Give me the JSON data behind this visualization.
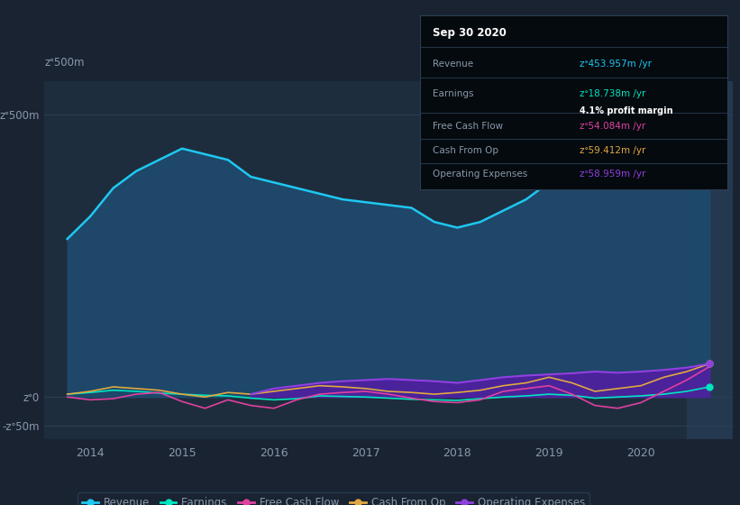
{
  "bg_color": "#1a2332",
  "plot_bg_color": "#1e2d3d",
  "grid_color": "#2a3f55",
  "text_color": "#8899aa",
  "title_color": "#ffffff",
  "ylim": [
    -75,
    560
  ],
  "xlim_start": 2013.5,
  "xlim_end": 2021.0,
  "yticks": [
    -50,
    0,
    500
  ],
  "ytick_labels": [
    "-zᐤ50m",
    "zᐤ0",
    "zᐤ500m"
  ],
  "xtick_labels": [
    "2014",
    "2015",
    "2016",
    "2017",
    "2018",
    "2019",
    "2020"
  ],
  "xtick_vals": [
    2014,
    2015,
    2016,
    2017,
    2018,
    2019,
    2020
  ],
  "revenue_color": "#1ec8f0",
  "earnings_color": "#00e5c0",
  "fcf_color": "#e040a0",
  "cashfromop_color": "#e0a840",
  "opex_color": "#9040e0",
  "revenue_fill_color": "#1e4a6e",
  "opex_fill_color": "#5020a0",
  "legend_bg": "#1a2332",
  "legend_border": "#2a3f55",
  "tooltip_bg": "#050a0f",
  "tooltip_border": "#2a3f55",
  "tooltip_title": "Sep 30 2020",
  "tooltip_revenue": "zᐤ453.957m /yr",
  "tooltip_earnings": "zᐤ18.738m /yr",
  "tooltip_margin": "4.1% profit margin",
  "tooltip_fcf": "zᐤ54.084m /yr",
  "tooltip_cashfromop": "zᐤ59.412m /yr",
  "tooltip_opex": "zᐤ58.959m /yr",
  "highlight_color": "#253a52",
  "revenue_x": [
    2013.75,
    2014.0,
    2014.25,
    2014.5,
    2014.75,
    2015.0,
    2015.25,
    2015.5,
    2015.75,
    2016.0,
    2016.25,
    2016.5,
    2016.75,
    2017.0,
    2017.25,
    2017.5,
    2017.75,
    2018.0,
    2018.25,
    2018.5,
    2018.75,
    2019.0,
    2019.25,
    2019.5,
    2019.75,
    2020.0,
    2020.25,
    2020.5,
    2020.75
  ],
  "revenue_y": [
    280,
    320,
    370,
    400,
    420,
    440,
    430,
    420,
    390,
    380,
    370,
    360,
    350,
    345,
    340,
    335,
    310,
    300,
    310,
    330,
    350,
    380,
    420,
    440,
    430,
    420,
    410,
    430,
    455
  ],
  "earnings_x": [
    2013.75,
    2014.0,
    2014.25,
    2014.5,
    2014.75,
    2015.0,
    2015.25,
    2015.5,
    2015.75,
    2016.0,
    2016.25,
    2016.5,
    2016.75,
    2017.0,
    2017.25,
    2017.5,
    2017.75,
    2018.0,
    2018.25,
    2018.5,
    2018.75,
    2019.0,
    2019.25,
    2019.5,
    2019.75,
    2020.0,
    2020.25,
    2020.5,
    2020.75
  ],
  "earnings_y": [
    5,
    8,
    12,
    10,
    7,
    5,
    3,
    2,
    -2,
    -5,
    -3,
    2,
    1,
    0,
    -2,
    -4,
    -5,
    -6,
    -3,
    0,
    2,
    5,
    3,
    -2,
    0,
    2,
    5,
    10,
    18
  ],
  "fcf_x": [
    2013.75,
    2014.0,
    2014.25,
    2014.5,
    2014.75,
    2015.0,
    2015.25,
    2015.5,
    2015.75,
    2016.0,
    2016.25,
    2016.5,
    2016.75,
    2017.0,
    2017.25,
    2017.5,
    2017.75,
    2018.0,
    2018.25,
    2018.5,
    2018.75,
    2019.0,
    2019.25,
    2019.5,
    2019.75,
    2020.0,
    2020.25,
    2020.5,
    2020.75
  ],
  "fcf_y": [
    0,
    -5,
    -3,
    5,
    8,
    -8,
    -20,
    -5,
    -15,
    -20,
    -5,
    5,
    8,
    10,
    5,
    -2,
    -8,
    -10,
    -5,
    10,
    15,
    20,
    5,
    -15,
    -20,
    -10,
    10,
    30,
    54
  ],
  "cashfromop_x": [
    2013.75,
    2014.0,
    2014.25,
    2014.5,
    2014.75,
    2015.0,
    2015.25,
    2015.5,
    2015.75,
    2016.0,
    2016.25,
    2016.5,
    2016.75,
    2017.0,
    2017.25,
    2017.5,
    2017.75,
    2018.0,
    2018.25,
    2018.5,
    2018.75,
    2019.0,
    2019.25,
    2019.5,
    2019.75,
    2020.0,
    2020.25,
    2020.5,
    2020.75
  ],
  "cashfromop_y": [
    5,
    10,
    18,
    15,
    12,
    5,
    0,
    8,
    5,
    10,
    15,
    20,
    18,
    15,
    10,
    8,
    5,
    8,
    12,
    20,
    25,
    35,
    25,
    10,
    15,
    20,
    35,
    45,
    59
  ],
  "opex_x": [
    2015.75,
    2016.0,
    2016.25,
    2016.5,
    2016.75,
    2017.0,
    2017.25,
    2017.5,
    2017.75,
    2018.0,
    2018.25,
    2018.5,
    2018.75,
    2019.0,
    2019.25,
    2019.5,
    2019.75,
    2020.0,
    2020.25,
    2020.5,
    2020.75
  ],
  "opex_y": [
    5,
    15,
    20,
    25,
    28,
    30,
    32,
    30,
    28,
    25,
    30,
    35,
    38,
    40,
    42,
    45,
    43,
    45,
    48,
    52,
    59
  ],
  "legend_items": [
    {
      "label": "Revenue",
      "color": "#1ec8f0"
    },
    {
      "label": "Earnings",
      "color": "#00e5c0"
    },
    {
      "label": "Free Cash Flow",
      "color": "#e040a0"
    },
    {
      "label": "Cash From Op",
      "color": "#e0a840"
    },
    {
      "label": "Operating Expenses",
      "color": "#9040e0"
    }
  ]
}
